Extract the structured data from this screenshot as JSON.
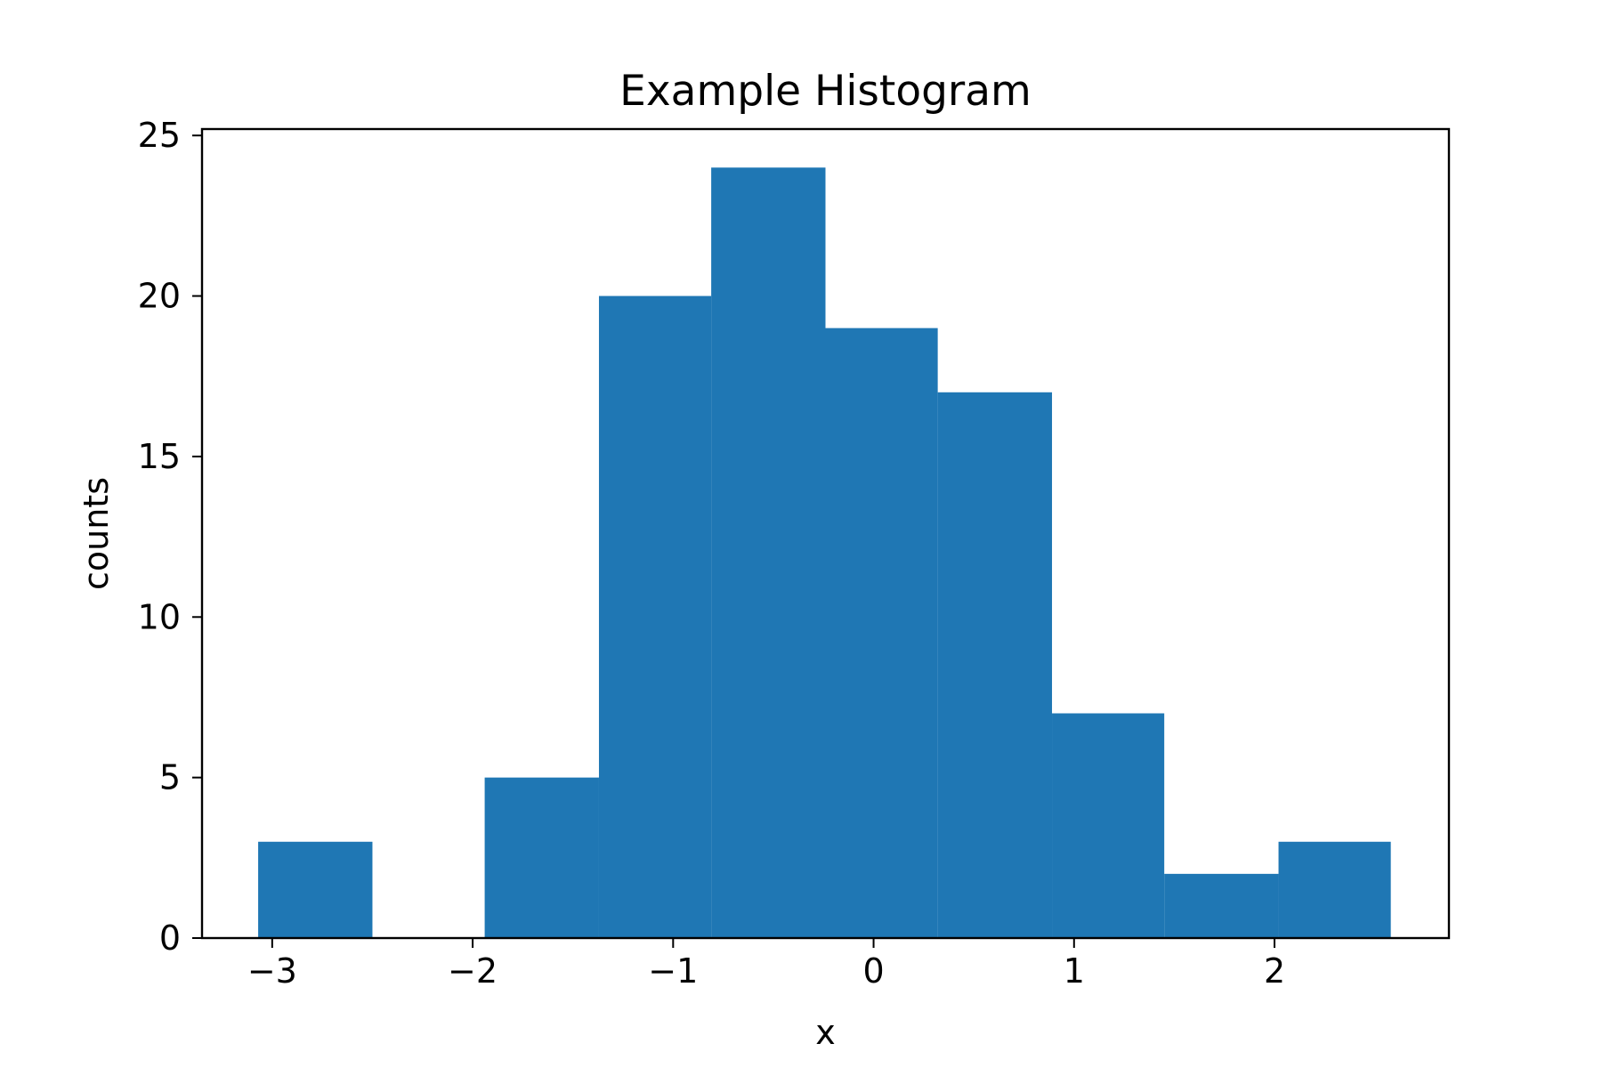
{
  "chart_data": {
    "type": "bar",
    "subtype": "histogram",
    "title": "Example Histogram",
    "xlabel": "x",
    "ylabel": "counts",
    "bins": [
      {
        "x0": -3.07,
        "x1": -2.5,
        "count": 3
      },
      {
        "x0": -2.5,
        "x1": -1.94,
        "count": 0
      },
      {
        "x0": -1.94,
        "x1": -1.37,
        "count": 5
      },
      {
        "x0": -1.37,
        "x1": -0.81,
        "count": 20
      },
      {
        "x0": -0.81,
        "x1": -0.24,
        "count": 24
      },
      {
        "x0": -0.24,
        "x1": 0.32,
        "count": 19
      },
      {
        "x0": 0.32,
        "x1": 0.89,
        "count": 17
      },
      {
        "x0": 0.89,
        "x1": 1.45,
        "count": 7
      },
      {
        "x0": 1.45,
        "x1": 2.02,
        "count": 2
      },
      {
        "x0": 2.02,
        "x1": 2.58,
        "count": 3
      }
    ],
    "xlim": [
      -3.35,
      2.87
    ],
    "ylim": [
      0,
      25.2
    ],
    "x_ticks": [
      {
        "value": -3,
        "label": "−3"
      },
      {
        "value": -2,
        "label": "−2"
      },
      {
        "value": -1,
        "label": "−1"
      },
      {
        "value": 0,
        "label": "0"
      },
      {
        "value": 1,
        "label": "1"
      },
      {
        "value": 2,
        "label": "2"
      }
    ],
    "y_ticks": [
      {
        "value": 0,
        "label": "0"
      },
      {
        "value": 5,
        "label": "5"
      },
      {
        "value": 10,
        "label": "10"
      },
      {
        "value": 15,
        "label": "15"
      },
      {
        "value": 20,
        "label": "20"
      },
      {
        "value": 25,
        "label": "25"
      }
    ],
    "bar_color": "#1f77b4",
    "grid": false,
    "legend": "none"
  }
}
